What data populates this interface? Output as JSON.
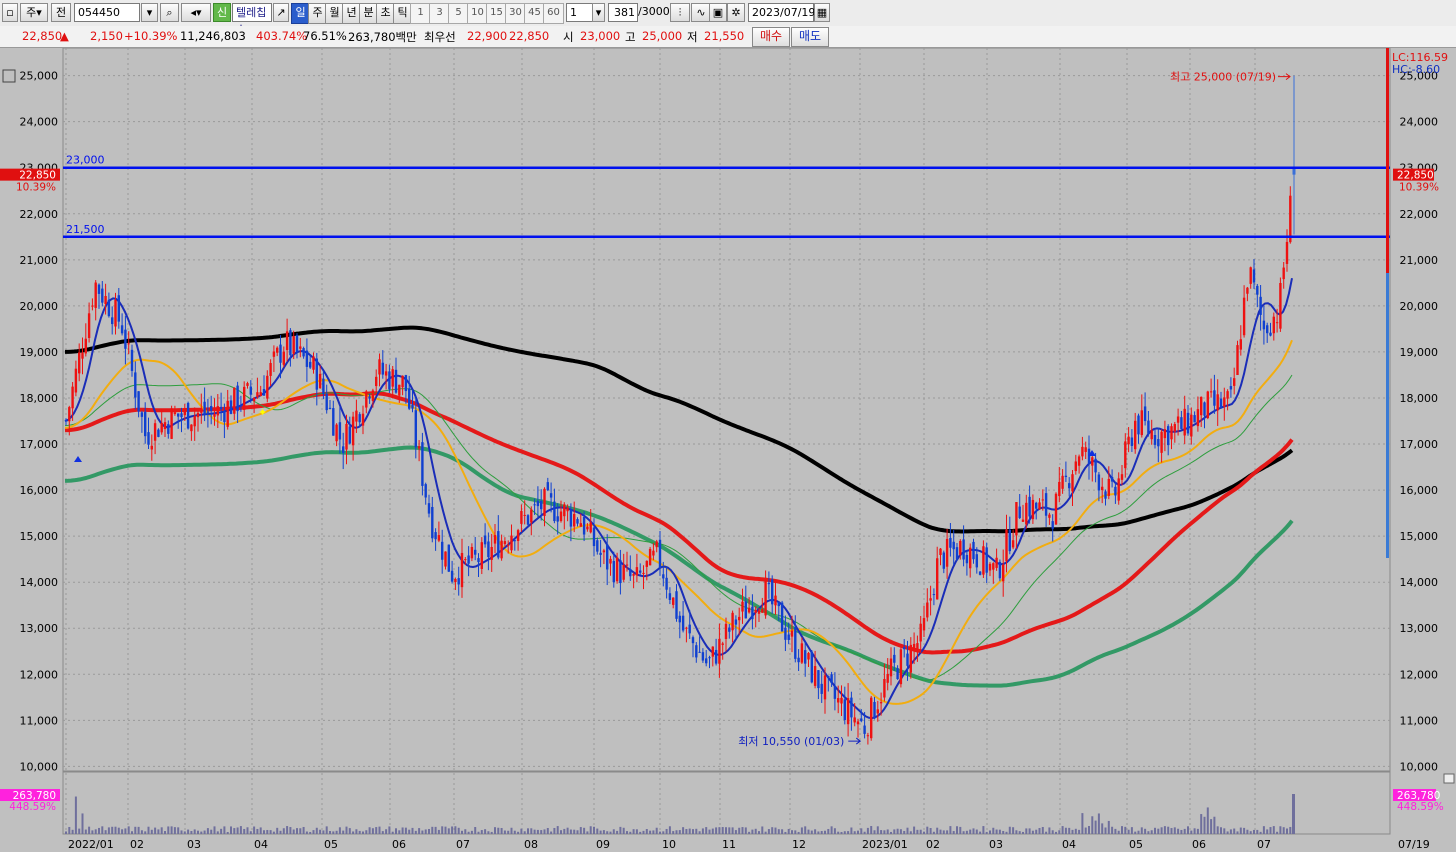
{
  "toolbar": {
    "market_select": "주",
    "jeon_label": "전",
    "stock_code": "054450",
    "new_badge": "신",
    "stock_name": "텔레칩스",
    "periods": [
      "일",
      "주",
      "월",
      "년",
      "분",
      "초",
      "틱"
    ],
    "active_period": "일",
    "intervals": [
      "1",
      "3",
      "5",
      "10",
      "15",
      "30",
      "45",
      "60"
    ],
    "interval_value": "1",
    "bar_count": "381",
    "bar_max": "/3000",
    "date": "2023/07/19"
  },
  "quote": {
    "price": "22,850",
    "arrow": "▲",
    "change": "2,150",
    "change_pct": "+10.39%",
    "volume": "11,246,803",
    "volume_ratio": "403.74%",
    "turnover": "76.51%",
    "amount": "263,780백만",
    "best_ask_label": "최우선",
    "best_ask": "22,900",
    "best_bid": "22,850",
    "open_label": "시",
    "open": "23,000",
    "high_label": "고",
    "high": "25,000",
    "low_label": "저",
    "low": "21,550",
    "buy_label": "매수",
    "sell_label": "매도"
  },
  "panel": {
    "lc_label": "LC:116.59",
    "hc_label": "HC:-8.60",
    "price_tag": "22,850",
    "pct_tag": "10.39%",
    "vol_tag": "263,780",
    "vol_pct_tag": "448.59%",
    "last_date": "07/19"
  },
  "colors": {
    "up": "#ee1111",
    "down": "#1040d0",
    "ma5": "#1a2db8",
    "ma20": "#f2ad10",
    "ma60": "#2e9e3e",
    "ma120": "#e41919",
    "ma240": "#339966",
    "ma_black": "#000000",
    "hline": "#0010ee",
    "volume": "#6f6f9c"
  },
  "chart_data": {
    "type": "candlestick",
    "period": "daily",
    "y_ticks": [
      10000,
      11000,
      12000,
      13000,
      14000,
      15000,
      16000,
      17000,
      18000,
      19000,
      20000,
      21000,
      22000,
      23000,
      24000,
      25000
    ],
    "ylim": [
      9900,
      25600
    ],
    "x_labels": [
      "2022/01",
      "02",
      "03",
      "04",
      "05",
      "06",
      "07",
      "08",
      "09",
      "10",
      "11",
      "12",
      "2023/01",
      "02",
      "03",
      "04",
      "05",
      "06",
      "07"
    ],
    "horizontal_lines": [
      {
        "label": "23,000",
        "value": 23000
      },
      {
        "label": "21,500",
        "value": 21500
      }
    ],
    "annotations": [
      {
        "text": "최고 25,000 (07/19)",
        "date": "2023/07/19",
        "value": 25000
      },
      {
        "text": "최저 10,550 (01/03)",
        "date": "2023/01/03",
        "value": 10550
      }
    ],
    "last_bar": {
      "date": "2023/07/19",
      "open": 23000,
      "high": 25000,
      "low": 21550,
      "close": 22850
    },
    "closes": [
      {
        "date": "2022/01",
        "value": 17500
      },
      {
        "date": "2022/01/15",
        "value": 20500
      },
      {
        "date": "2022/01/28",
        "value": 19600
      },
      {
        "date": "2022/02/10",
        "value": 17200
      },
      {
        "date": "2022/02/25",
        "value": 17600
      },
      {
        "date": "2022/03/15",
        "value": 17700
      },
      {
        "date": "2022/04/05",
        "value": 18200
      },
      {
        "date": "2022/04/15",
        "value": 19200
      },
      {
        "date": "2022/04/28",
        "value": 18600
      },
      {
        "date": "2022/05/10",
        "value": 17000
      },
      {
        "date": "2022/05/25",
        "value": 18600
      },
      {
        "date": "2022/06/08",
        "value": 18300
      },
      {
        "date": "2022/06/20",
        "value": 15400
      },
      {
        "date": "2022/06/30",
        "value": 14200
      },
      {
        "date": "2022/07/15",
        "value": 14600
      },
      {
        "date": "2022/07/28",
        "value": 15200
      },
      {
        "date": "2022/08/10",
        "value": 15700
      },
      {
        "date": "2022/08/25",
        "value": 15400
      },
      {
        "date": "2022/09/05",
        "value": 14500
      },
      {
        "date": "2022/09/20",
        "value": 14000
      },
      {
        "date": "2022/09/30",
        "value": 14600
      },
      {
        "date": "2022/10/12",
        "value": 13000
      },
      {
        "date": "2022/10/25",
        "value": 12200
      },
      {
        "date": "2022/11/08",
        "value": 13200
      },
      {
        "date": "2022/11/20",
        "value": 13800
      },
      {
        "date": "2022/12/01",
        "value": 12800
      },
      {
        "date": "2022/12/15",
        "value": 11700
      },
      {
        "date": "2022/12/28",
        "value": 11100
      },
      {
        "date": "2023/01/03",
        "value": 10850
      },
      {
        "date": "2023/01/15",
        "value": 12000
      },
      {
        "date": "2023/01/30",
        "value": 12800
      },
      {
        "date": "2023/02/08",
        "value": 14500
      },
      {
        "date": "2023/02/20",
        "value": 14800
      },
      {
        "date": "2023/03/05",
        "value": 14200
      },
      {
        "date": "2023/03/15",
        "value": 15700
      },
      {
        "date": "2023/03/28",
        "value": 15500
      },
      {
        "date": "2023/04/10",
        "value": 16900
      },
      {
        "date": "2023/04/25",
        "value": 15800
      },
      {
        "date": "2023/05/05",
        "value": 17500
      },
      {
        "date": "2023/05/15",
        "value": 17200
      },
      {
        "date": "2023/05/28",
        "value": 17400
      },
      {
        "date": "2023/06/08",
        "value": 17800
      },
      {
        "date": "2023/06/20",
        "value": 17900
      },
      {
        "date": "2023/06/28",
        "value": 20800
      },
      {
        "date": "2023/07/05",
        "value": 19500
      },
      {
        "date": "2023/07/12",
        "value": 19900
      },
      {
        "date": "2023/07/19",
        "value": 22850
      }
    ],
    "volume_peaks": [
      {
        "date": "2022/01",
        "value": "high"
      },
      {
        "date": "2023/07/19",
        "value": 263780
      }
    ]
  }
}
